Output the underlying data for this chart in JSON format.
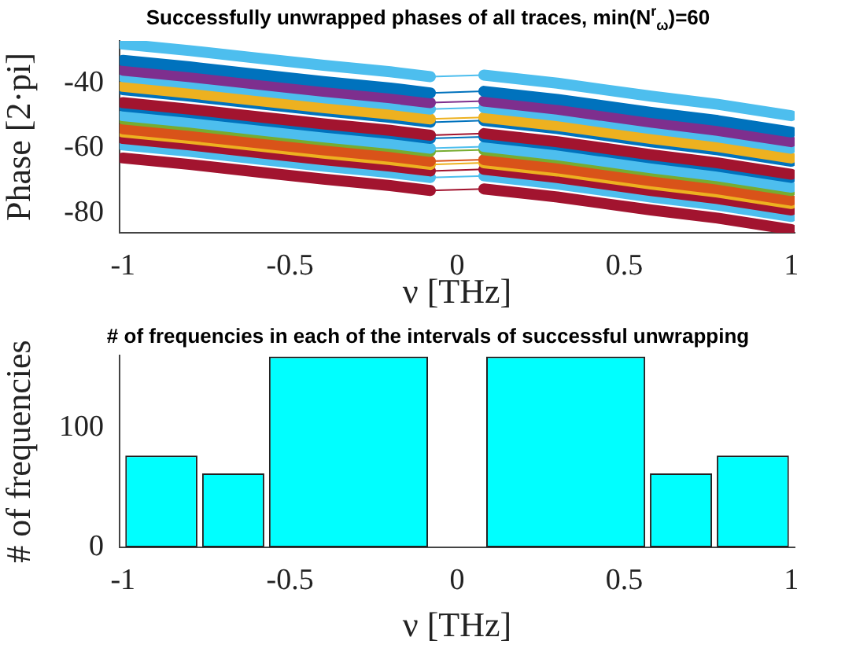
{
  "chart_data": [
    {
      "type": "line",
      "title": "Successfully unwrapped phases of all traces, min(N$^{r}$$_{ω}$)=60",
      "xlabel": "ν [THz]",
      "ylabel": "Phase [2·pi]",
      "x": [
        -1,
        -0.8,
        -0.58,
        -0.4,
        -0.2,
        -0.08,
        0.08,
        0.3,
        0.58,
        0.78,
        1
      ],
      "xlim": [
        -1.01,
        1.01
      ],
      "ylim": [
        -86,
        -27
      ],
      "xticks": [
        -1,
        -0.5,
        0,
        0.5,
        1
      ],
      "yticks": [
        -80,
        -60,
        -40
      ],
      "series": [
        {
          "color": "#4dbeee",
          "values": [
            -28,
            -30,
            -32.5,
            -34.5,
            -36.5,
            -38,
            -37.5,
            -40,
            -44,
            -46.5,
            -50
          ]
        },
        {
          "color": "#0072bd",
          "values": [
            -33,
            -35,
            -37.5,
            -39.5,
            -41.5,
            -43,
            -42.5,
            -45,
            -49,
            -51.5,
            -55
          ]
        },
        {
          "color": "#7e2f8e",
          "values": [
            -36,
            -38,
            -40.5,
            -42.5,
            -44.5,
            -46,
            -45.5,
            -48,
            -52,
            -54.5,
            -58
          ]
        },
        {
          "color": "#4dbeee",
          "values": [
            -38,
            -40,
            -42.5,
            -44.5,
            -46.5,
            -48,
            -47.5,
            -50,
            -54,
            -56.5,
            -60
          ]
        },
        {
          "color": "#edb120",
          "values": [
            -41,
            -43,
            -45.5,
            -47.5,
            -49.5,
            -51,
            -50.5,
            -53,
            -57,
            -59.5,
            -63
          ]
        },
        {
          "color": "#0072bd",
          "values": [
            -42,
            -44,
            -46.5,
            -48.5,
            -50.5,
            -52,
            -51.5,
            -54,
            -58,
            -60.5,
            -64
          ]
        },
        {
          "color": "#a2142f",
          "values": [
            -46,
            -48,
            -50.5,
            -52.5,
            -54.5,
            -56,
            -55.5,
            -58,
            -62,
            -64.5,
            -68
          ]
        },
        {
          "color": "#0072bd",
          "values": [
            -47,
            -49,
            -51.5,
            -53.5,
            -55.5,
            -57,
            -56.5,
            -59,
            -63,
            -65.5,
            -69
          ]
        },
        {
          "color": "#4dbeee",
          "values": [
            -50,
            -52,
            -54.5,
            -56.5,
            -58.5,
            -60,
            -59.5,
            -62,
            -66,
            -68.5,
            -72
          ]
        },
        {
          "color": "#77ac30",
          "values": [
            -51,
            -53,
            -55.5,
            -57.5,
            -59.5,
            -61,
            -60.5,
            -63,
            -67,
            -69.5,
            -73
          ]
        },
        {
          "color": "#d95319",
          "values": [
            -54,
            -56,
            -58.5,
            -60.5,
            -62.5,
            -64,
            -63.5,
            -66,
            -70,
            -72.5,
            -76
          ]
        },
        {
          "color": "#edb120",
          "values": [
            -55,
            -57,
            -59.5,
            -61.5,
            -63.5,
            -65,
            -64.5,
            -67,
            -71,
            -73.5,
            -77
          ]
        },
        {
          "color": "#a2142f",
          "values": [
            -57,
            -59,
            -61.5,
            -63.5,
            -65.5,
            -67,
            -66.5,
            -69,
            -73,
            -75.5,
            -79
          ]
        },
        {
          "color": "#4dbeee",
          "values": [
            -59,
            -61,
            -63.5,
            -65.5,
            -67.5,
            -69,
            -68.5,
            -71,
            -75,
            -77.5,
            -81
          ]
        },
        {
          "color": "#a2142f",
          "values": [
            -63,
            -65,
            -67.5,
            -69.5,
            -71.5,
            -73,
            -72.5,
            -75,
            -79,
            -81.5,
            -85
          ]
        }
      ]
    },
    {
      "type": "histogram",
      "title": "# of frequencies in each of the intervals of successful unwrapping",
      "xlabel": "ν [THz]",
      "ylabel": "# of frequencies",
      "bins": [
        -1,
        -0.77,
        -0.57,
        -0.08,
        0.08,
        0.57,
        0.77,
        1
      ],
      "values": [
        77,
        62,
        160,
        0,
        160,
        62,
        77
      ],
      "color": "#00ffff",
      "xlim": [
        -1.01,
        1.01
      ],
      "ylim": [
        0,
        161
      ],
      "xticks": [
        -1,
        -0.5,
        0,
        0.5,
        1
      ],
      "yticks": [
        0,
        100
      ]
    }
  ]
}
